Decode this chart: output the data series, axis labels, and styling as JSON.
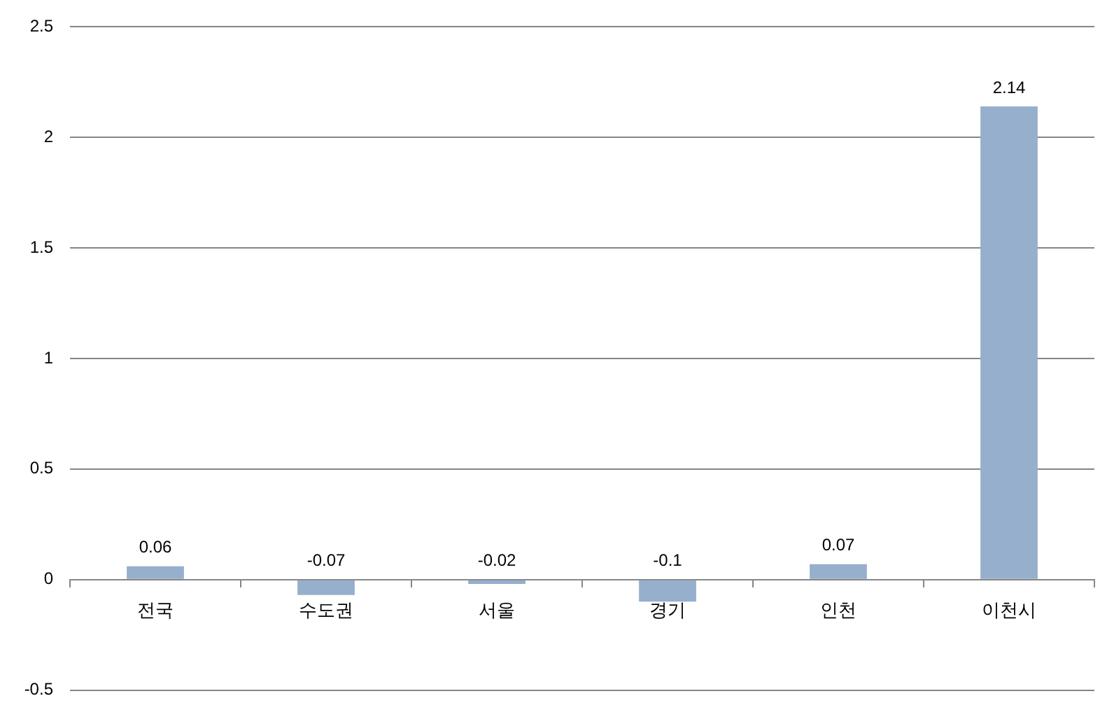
{
  "chart_data": {
    "type": "bar",
    "categories": [
      "전국",
      "수도권",
      "서울",
      "경기",
      "인천",
      "이천시"
    ],
    "values": [
      0.06,
      -0.07,
      -0.02,
      -0.1,
      0.07,
      2.14
    ],
    "color": "#95afcc",
    "ylim": [
      -0.5,
      2.5
    ],
    "yticks": [
      -0.5,
      0,
      0.5,
      1,
      1.5,
      2,
      2.5
    ],
    "grid": "y",
    "data_labels": true
  }
}
